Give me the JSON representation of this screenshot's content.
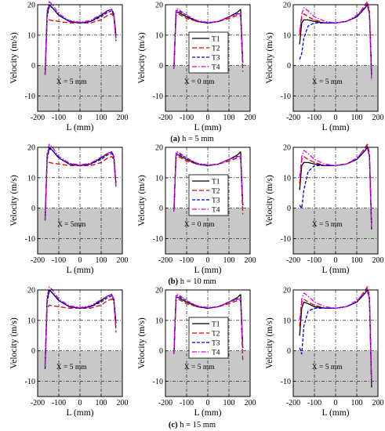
{
  "figure": {
    "captions": [
      {
        "letter": "(a)",
        "text": " h = 5 mm"
      },
      {
        "letter": "(b)",
        "text": " h = 10 mm"
      },
      {
        "letter": "(c)",
        "text": " h = 15 mm"
      }
    ]
  },
  "colors": {
    "T1": "#000000",
    "T2": "#e00000",
    "T3": "#0000e0",
    "T4": "#e000e0",
    "shade": "#c8c8c8"
  },
  "chart_data": [
    {
      "type": "line",
      "row": 0,
      "col": 0,
      "xlabel": "L (mm)",
      "ylabel": "Velocity (m/s)",
      "xlim": [
        -200,
        200
      ],
      "ylim": [
        -15,
        20
      ],
      "xticks": [
        -200,
        -100,
        0,
        100,
        200
      ],
      "yticks": [
        -10,
        0,
        10,
        20
      ],
      "region_label": "X = 5 mm",
      "legend": false,
      "x": [
        -165,
        -155,
        -145,
        -130,
        -100,
        -50,
        0,
        50,
        100,
        130,
        150,
        160,
        170
      ],
      "series": [
        {
          "name": "T1",
          "values": [
            -3,
            17,
            20,
            19,
            16.5,
            14.5,
            14,
            14.5,
            16.5,
            18,
            18.5,
            17,
            10
          ]
        },
        {
          "name": "T2",
          "values": [
            -3,
            15,
            15,
            14.8,
            14.5,
            14,
            14,
            14,
            15,
            16.5,
            17,
            16,
            8
          ]
        },
        {
          "name": "T3",
          "values": [
            -3,
            16,
            19.5,
            19,
            16.5,
            14.5,
            14,
            14.5,
            16,
            17.5,
            18,
            16.5,
            9
          ]
        },
        {
          "name": "T4",
          "values": [
            -3,
            18,
            21,
            20,
            17,
            14.8,
            14.2,
            14.8,
            16.8,
            18,
            18.5,
            17,
            8
          ]
        }
      ]
    },
    {
      "type": "line",
      "row": 0,
      "col": 1,
      "xlabel": "L (mm)",
      "ylabel": "Velocity (m/s)",
      "xlim": [
        -200,
        200
      ],
      "ylim": [
        -15,
        20
      ],
      "xticks": [
        -200,
        -100,
        0,
        100,
        200
      ],
      "yticks": [
        -10,
        0,
        10,
        20
      ],
      "region_label": "X = 0 mm",
      "legend": true,
      "x": [
        -160,
        -150,
        -140,
        -100,
        -50,
        0,
        50,
        100,
        140,
        155,
        165
      ],
      "series": [
        {
          "name": "T1",
          "values": [
            -1,
            17.5,
            17.5,
            16,
            14.5,
            14,
            14.5,
            16,
            17.5,
            18.5,
            1
          ]
        },
        {
          "name": "T2",
          "values": [
            -1,
            16.5,
            17,
            15.5,
            14.5,
            14,
            14.5,
            15.5,
            16.5,
            16.5,
            -2
          ]
        },
        {
          "name": "T3",
          "values": [
            -1,
            18,
            18,
            16.5,
            14.5,
            14,
            14.5,
            16,
            17,
            17,
            1
          ]
        },
        {
          "name": "T4",
          "values": [
            -1,
            18.5,
            18.5,
            16.5,
            14.8,
            14.2,
            14.5,
            16,
            17,
            17,
            1
          ]
        }
      ]
    },
    {
      "type": "line",
      "row": 0,
      "col": 2,
      "xlabel": "L (mm)",
      "ylabel": "Velocity (m/s)",
      "xlim": [
        -200,
        200
      ],
      "ylim": [
        -15,
        20
      ],
      "xticks": [
        -200,
        -100,
        0,
        100,
        200
      ],
      "yticks": [
        -10,
        0,
        10,
        20
      ],
      "region_label": "X = 5 mm",
      "legend": false,
      "x": [
        -170,
        -160,
        -150,
        -130,
        -100,
        -50,
        0,
        50,
        100,
        140,
        150,
        160,
        170
      ],
      "series": [
        {
          "name": "T1",
          "values": [
            7,
            14,
            15,
            15,
            14.5,
            14,
            14,
            14.5,
            16,
            19,
            20,
            17,
            -3
          ]
        },
        {
          "name": "T2",
          "values": [
            10,
            16,
            17,
            16,
            15,
            14,
            14,
            14.5,
            16,
            20,
            21,
            18,
            -3
          ]
        },
        {
          "name": "T3",
          "values": [
            2,
            4,
            9,
            13,
            14,
            14,
            14,
            14.5,
            16,
            19,
            20,
            17,
            -4
          ]
        },
        {
          "name": "T4",
          "values": [
            11,
            17,
            19,
            18,
            16,
            14.5,
            14,
            14.5,
            16.5,
            19.5,
            20.5,
            17,
            -5
          ]
        }
      ]
    },
    {
      "type": "line",
      "row": 1,
      "col": 0,
      "xlabel": "L (mm)",
      "ylabel": "Velocity (m/s)",
      "xlim": [
        -200,
        200
      ],
      "ylim": [
        -15,
        20
      ],
      "xticks": [
        -200,
        -100,
        0,
        100,
        200
      ],
      "yticks": [
        -10,
        0,
        10,
        20
      ],
      "region_label": "X = 5mm",
      "legend": false,
      "x": [
        -165,
        -155,
        -145,
        -130,
        -100,
        -50,
        0,
        50,
        100,
        130,
        150,
        160,
        170
      ],
      "series": [
        {
          "name": "T1",
          "values": [
            -4,
            17,
            20,
            19,
            16.5,
            14.5,
            14,
            14.5,
            16.5,
            18,
            18.5,
            17,
            8
          ]
        },
        {
          "name": "T2",
          "values": [
            -3,
            15,
            15,
            14.8,
            14.5,
            14,
            14,
            14,
            15,
            16.5,
            17,
            16,
            7
          ]
        },
        {
          "name": "T3",
          "values": [
            -4,
            16,
            19.5,
            19,
            16.5,
            14.5,
            14,
            14.5,
            16,
            17.5,
            18,
            16.5,
            8
          ]
        },
        {
          "name": "T4",
          "values": [
            -4,
            18,
            21,
            20,
            17,
            14.8,
            14.2,
            14.8,
            16.8,
            18,
            18.5,
            17,
            7
          ]
        }
      ]
    },
    {
      "type": "line",
      "row": 1,
      "col": 1,
      "xlabel": "L (mm)",
      "ylabel": "Velocity (m/s)",
      "xlim": [
        -200,
        200
      ],
      "ylim": [
        -15,
        20
      ],
      "xticks": [
        -200,
        -100,
        0,
        100,
        200
      ],
      "yticks": [
        -10,
        0,
        10,
        20
      ],
      "region_label": "X = 0 mm",
      "legend": true,
      "x": [
        -160,
        -150,
        -140,
        -100,
        -50,
        0,
        50,
        100,
        140,
        155,
        165
      ],
      "series": [
        {
          "name": "T1",
          "values": [
            -1,
            17.5,
            17.5,
            16,
            14.5,
            14,
            14.5,
            16,
            17.5,
            18.5,
            1
          ]
        },
        {
          "name": "T2",
          "values": [
            -1,
            16.5,
            17,
            15.5,
            14.5,
            14,
            14.5,
            15.5,
            16.5,
            16.5,
            -2
          ]
        },
        {
          "name": "T3",
          "values": [
            -1,
            18,
            18,
            16.5,
            14.5,
            14,
            14.5,
            16,
            17,
            17,
            1
          ]
        },
        {
          "name": "T4",
          "values": [
            -1,
            18.5,
            18.5,
            16.5,
            14.8,
            14.2,
            14.5,
            16,
            17,
            17,
            1
          ]
        }
      ]
    },
    {
      "type": "line",
      "row": 1,
      "col": 2,
      "xlabel": "L (mm)",
      "ylabel": "Velocity (m/s)",
      "xlim": [
        -200,
        200
      ],
      "ylim": [
        -15,
        20
      ],
      "xticks": [
        -200,
        -100,
        0,
        100,
        200
      ],
      "yticks": [
        -10,
        0,
        10,
        20
      ],
      "region_label": "X = 5 mm",
      "legend": false,
      "x": [
        -170,
        -160,
        -150,
        -130,
        -100,
        -50,
        0,
        50,
        100,
        140,
        150,
        160,
        170
      ],
      "series": [
        {
          "name": "T1",
          "values": [
            6,
            14,
            15,
            15,
            14.5,
            14,
            14,
            14.5,
            16,
            19,
            20,
            17,
            -7
          ]
        },
        {
          "name": "T2",
          "values": [
            8,
            16,
            17,
            16,
            15,
            14,
            14,
            14.5,
            16,
            20,
            21,
            18,
            -6
          ]
        },
        {
          "name": "T3",
          "values": [
            1,
            0,
            6,
            12,
            14,
            14,
            14,
            14.5,
            16,
            19,
            20,
            17,
            -6
          ]
        },
        {
          "name": "T4",
          "values": [
            10,
            17,
            19,
            18,
            16,
            14.5,
            14,
            14.5,
            16.5,
            19.5,
            20.5,
            17,
            -7
          ]
        }
      ]
    },
    {
      "type": "line",
      "row": 2,
      "col": 0,
      "xlabel": "L (mm)",
      "ylabel": "Velocity (m/s)",
      "xlim": [
        -200,
        200
      ],
      "ylim": [
        -15,
        20
      ],
      "xticks": [
        -200,
        -100,
        0,
        100,
        200
      ],
      "yticks": [
        -10,
        0,
        10,
        20
      ],
      "region_label": "X = 5 mm",
      "legend": false,
      "x": [
        -165,
        -155,
        -145,
        -130,
        -100,
        -50,
        0,
        50,
        100,
        130,
        150,
        160,
        170
      ],
      "series": [
        {
          "name": "T1",
          "values": [
            -5,
            17,
            20,
            19,
            16.5,
            14.5,
            14,
            14.5,
            16.5,
            18,
            18.5,
            17,
            9
          ]
        },
        {
          "name": "T2",
          "values": [
            -4,
            14,
            15,
            14.8,
            14.5,
            14,
            14,
            14,
            15,
            16.5,
            17,
            16,
            7
          ]
        },
        {
          "name": "T3",
          "values": [
            -6,
            16,
            19.5,
            19,
            16.5,
            14.5,
            14,
            14.5,
            16,
            17.5,
            18,
            16.5,
            8
          ]
        },
        {
          "name": "T4",
          "values": [
            -5,
            18,
            21,
            20,
            17,
            14.8,
            14.2,
            14.8,
            16.8,
            18,
            18.5,
            17,
            6
          ]
        }
      ]
    },
    {
      "type": "line",
      "row": 2,
      "col": 1,
      "xlabel": "L (mm)",
      "ylabel": "Velocity (m/s)",
      "xlim": [
        -200,
        200
      ],
      "ylim": [
        -15,
        20
      ],
      "xticks": [
        -200,
        -100,
        0,
        100,
        200
      ],
      "yticks": [
        -10,
        0,
        10,
        20
      ],
      "region_label": "X = 5 mm",
      "legend": true,
      "x": [
        -160,
        -150,
        -140,
        -100,
        -50,
        0,
        50,
        100,
        140,
        155,
        165
      ],
      "series": [
        {
          "name": "T1",
          "values": [
            -1,
            17.5,
            17.5,
            16,
            14.5,
            14,
            14.5,
            16,
            17.5,
            18.5,
            1
          ]
        },
        {
          "name": "T2",
          "values": [
            -1,
            16.5,
            17,
            15.5,
            14.5,
            14,
            14.5,
            15.5,
            16.5,
            16.5,
            -3
          ]
        },
        {
          "name": "T3",
          "values": [
            -1,
            18,
            18,
            16.5,
            14.5,
            14,
            14.5,
            16,
            17,
            17,
            1
          ]
        },
        {
          "name": "T4",
          "values": [
            -1,
            18.5,
            18.5,
            16.5,
            14.8,
            14.2,
            14.5,
            16,
            17,
            17,
            1
          ]
        }
      ]
    },
    {
      "type": "line",
      "row": 2,
      "col": 2,
      "xlabel": "L (mm)",
      "ylabel": "Velocity (m/s)",
      "xlim": [
        -200,
        200
      ],
      "ylim": [
        -15,
        20
      ],
      "xticks": [
        -200,
        -100,
        0,
        100,
        200
      ],
      "yticks": [
        -10,
        0,
        10,
        20
      ],
      "region_label": "X = 5 mm",
      "legend": false,
      "x": [
        -170,
        -160,
        -150,
        -130,
        -100,
        -50,
        0,
        50,
        100,
        140,
        150,
        160,
        170
      ],
      "series": [
        {
          "name": "T1",
          "values": [
            5,
            14,
            16,
            15.5,
            14.5,
            14,
            14,
            14.5,
            16,
            19,
            20,
            17,
            -12
          ]
        },
        {
          "name": "T2",
          "values": [
            8,
            16,
            17,
            16,
            15,
            14,
            14,
            14.5,
            16,
            20,
            21,
            18,
            -10
          ]
        },
        {
          "name": "T3",
          "values": [
            1,
            -1,
            8,
            13,
            14,
            14,
            14,
            14.5,
            16,
            19,
            20,
            17,
            -11
          ]
        },
        {
          "name": "T4",
          "values": [
            10,
            17,
            19,
            18,
            16,
            14.5,
            14,
            14.5,
            16.5,
            19.5,
            20.5,
            17,
            -11
          ]
        }
      ]
    }
  ]
}
